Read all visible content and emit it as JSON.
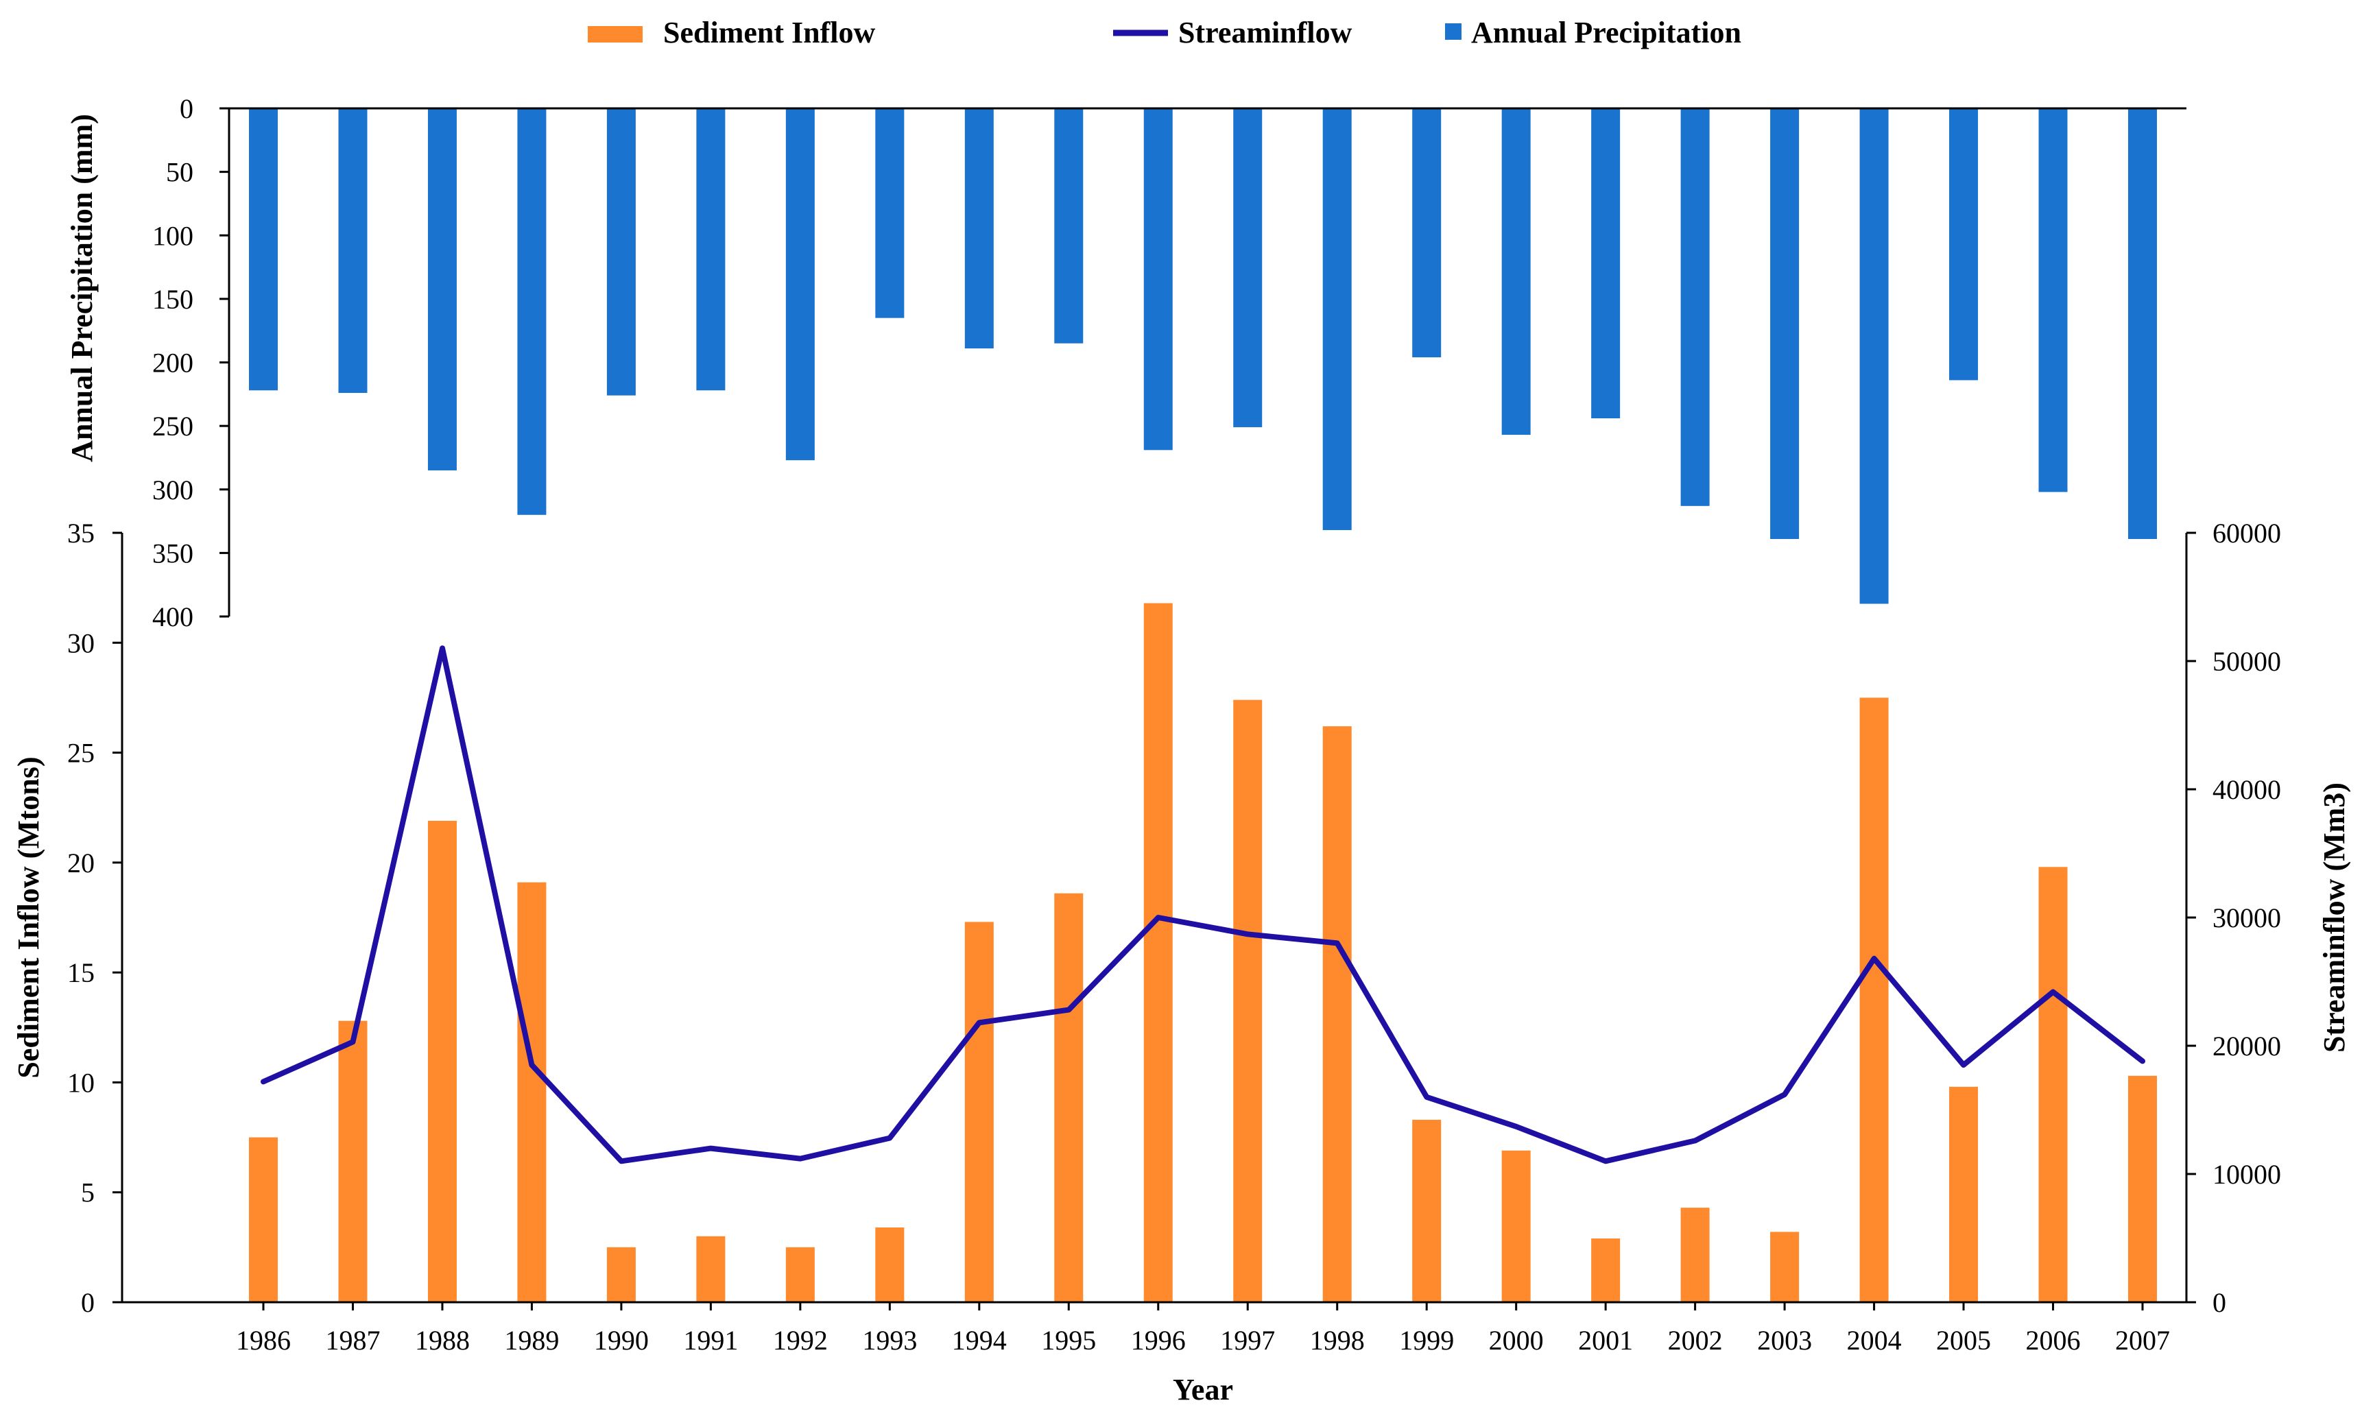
{
  "chart_data": {
    "type": "bar",
    "categories": [
      "1986",
      "1987",
      "1988",
      "1989",
      "1990",
      "1991",
      "1992",
      "1993",
      "1994",
      "1995",
      "1996",
      "1997",
      "1998",
      "1999",
      "2000",
      "2001",
      "2002",
      "2003",
      "2004",
      "2005",
      "2006",
      "2007"
    ],
    "series": [
      {
        "name": "Sediment Inflow",
        "type": "bar",
        "axis": "left",
        "color": "#FF8A2E",
        "values": [
          7.5,
          12.8,
          21.9,
          19.1,
          2.5,
          3.0,
          2.5,
          3.4,
          17.3,
          18.6,
          31.8,
          27.4,
          26.2,
          8.3,
          6.9,
          2.9,
          4.3,
          3.2,
          27.5,
          9.8,
          19.8,
          10.3
        ]
      },
      {
        "name": "Streaminflow",
        "type": "line",
        "axis": "right",
        "color": "#1F0FA3",
        "values": [
          17200,
          20300,
          51000,
          18500,
          11000,
          12000,
          11200,
          12800,
          21800,
          22800,
          30000,
          28700,
          28000,
          16000,
          13700,
          11000,
          12600,
          16200,
          26800,
          18500,
          24200,
          18800
        ]
      },
      {
        "name": "Annual Precipitation",
        "type": "bar",
        "axis": "top-inverted",
        "color": "#1A73CE",
        "values": [
          222,
          224,
          285,
          320,
          226,
          222,
          277,
          165,
          189,
          185,
          269,
          251,
          332,
          196,
          257,
          244,
          313,
          339,
          390,
          214,
          302,
          339
        ]
      }
    ],
    "xlabel": "Year",
    "ylabel_left": "Sediment Inflow (Mtons)",
    "ylabel_right": "Streaminflow (Mm3)",
    "ylabel_top": "Annual Precipitation (mm)",
    "ylim_left": [
      0,
      35
    ],
    "ylim_right": [
      0,
      60000
    ],
    "ylim_top": [
      0,
      400
    ],
    "yticks_left": [
      0,
      5,
      10,
      15,
      20,
      25,
      30,
      35
    ],
    "yticks_right": [
      0,
      10000,
      20000,
      30000,
      40000,
      50000,
      60000
    ],
    "yticks_top": [
      0,
      50,
      100,
      150,
      200,
      250,
      300,
      350,
      400
    ],
    "legend": [
      {
        "label": "Sediment Inflow",
        "color": "#FF8A2E",
        "symbol": "bar"
      },
      {
        "label": "Streaminflow",
        "color": "#1F0FA3",
        "symbol": "line"
      },
      {
        "label": "Annual Precipitation",
        "color": "#1A73CE",
        "symbol": "square"
      }
    ],
    "legend_position": "top-center",
    "grid": false
  }
}
